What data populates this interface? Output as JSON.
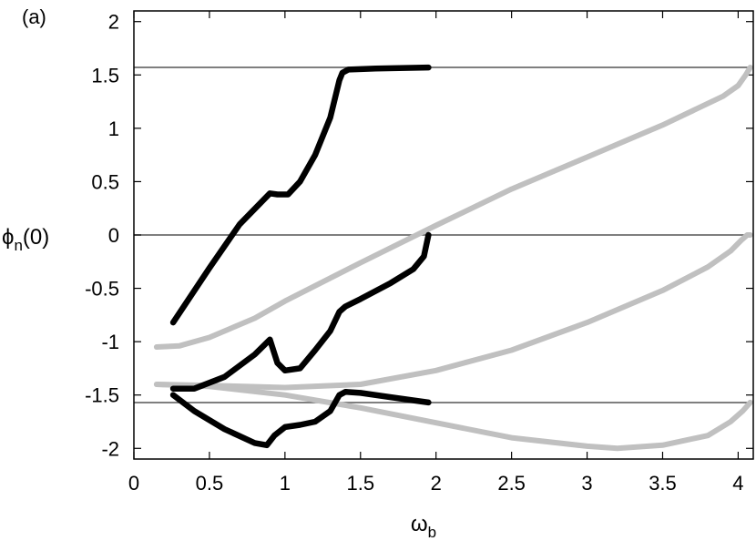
{
  "chart_data": {
    "type": "line",
    "panel_label": "(a)",
    "xlabel": {
      "main": "ω",
      "sub": "b"
    },
    "ylabel": {
      "main": "ϕ",
      "sub": "n",
      "suffix": "(0)"
    },
    "xlim": [
      0,
      4.1
    ],
    "ylim": [
      -2.1,
      2.1
    ],
    "x_ticks": [
      {
        "v": 0,
        "t": "0"
      },
      {
        "v": 0.5,
        "t": "0.5"
      },
      {
        "v": 1,
        "t": "1"
      },
      {
        "v": 1.5,
        "t": "1.5"
      },
      {
        "v": 2,
        "t": "2"
      },
      {
        "v": 2.5,
        "t": "2.5"
      },
      {
        "v": 3,
        "t": "3"
      },
      {
        "v": 3.5,
        "t": "3.5"
      },
      {
        "v": 4,
        "t": "4"
      }
    ],
    "y_ticks": [
      {
        "v": 2,
        "t": "2"
      },
      {
        "v": 1.5,
        "t": "1.5"
      },
      {
        "v": 1,
        "t": "1"
      },
      {
        "v": 0.5,
        "t": "0.5"
      },
      {
        "v": 0,
        "t": "0"
      },
      {
        "v": -0.5,
        "t": "-0.5"
      },
      {
        "v": -1,
        "t": "-1"
      },
      {
        "v": -1.5,
        "t": "-1.5"
      },
      {
        "v": -2,
        "t": "-2"
      }
    ],
    "reference_lines_y": [
      1.5708,
      0,
      -1.5708
    ],
    "colors": {
      "black": "#000000",
      "gray": "#c0c0c0",
      "reference": "#555555"
    },
    "series": [
      {
        "color": "black",
        "x": [
          0.26,
          0.5,
          0.7,
          0.9,
          0.95,
          1.02,
          1.1,
          1.2,
          1.3,
          1.36,
          1.38,
          1.42,
          1.6,
          1.95
        ],
        "y": [
          -0.82,
          -0.31,
          0.1,
          0.39,
          0.38,
          0.38,
          0.5,
          0.75,
          1.1,
          1.45,
          1.52,
          1.55,
          1.56,
          1.57
        ]
      },
      {
        "color": "black",
        "x": [
          0.26,
          0.4,
          0.6,
          0.8,
          0.9,
          0.95,
          1.0,
          1.1,
          1.2,
          1.3,
          1.36,
          1.4,
          1.5,
          1.7,
          1.85,
          1.92,
          1.95
        ],
        "y": [
          -1.44,
          -1.44,
          -1.33,
          -1.12,
          -0.98,
          -1.2,
          -1.27,
          -1.25,
          -1.08,
          -0.9,
          -0.72,
          -0.67,
          -0.6,
          -0.45,
          -0.32,
          -0.2,
          0.0
        ]
      },
      {
        "color": "black",
        "x": [
          0.26,
          0.4,
          0.6,
          0.8,
          0.88,
          0.93,
          1.0,
          1.1,
          1.2,
          1.3,
          1.36,
          1.4,
          1.5,
          1.7,
          1.95
        ],
        "y": [
          -1.5,
          -1.65,
          -1.82,
          -1.95,
          -1.97,
          -1.88,
          -1.8,
          -1.78,
          -1.75,
          -1.65,
          -1.5,
          -1.47,
          -1.48,
          -1.52,
          -1.57
        ]
      },
      {
        "color": "gray",
        "x": [
          0.15,
          0.3,
          0.5,
          0.8,
          1.0,
          1.5,
          2.0,
          2.5,
          3.0,
          3.5,
          3.9,
          4.0,
          4.05,
          4.08
        ],
        "y": [
          -1.05,
          -1.04,
          -0.96,
          -0.78,
          -0.62,
          -0.26,
          0.09,
          0.43,
          0.73,
          1.03,
          1.3,
          1.4,
          1.5,
          1.57
        ]
      },
      {
        "color": "gray",
        "x": [
          0.15,
          0.5,
          1.0,
          1.5,
          2.0,
          2.5,
          3.0,
          3.5,
          3.8,
          3.95,
          4.02,
          4.06,
          4.08
        ],
        "y": [
          -1.4,
          -1.41,
          -1.43,
          -1.4,
          -1.27,
          -1.08,
          -0.82,
          -0.52,
          -0.3,
          -0.15,
          -0.05,
          0.0,
          0.0
        ]
      },
      {
        "color": "gray",
        "x": [
          0.15,
          0.5,
          1.0,
          1.5,
          2.0,
          2.5,
          3.0,
          3.2,
          3.5,
          3.8,
          3.95,
          4.03,
          4.08
        ],
        "y": [
          -1.4,
          -1.42,
          -1.5,
          -1.62,
          -1.76,
          -1.9,
          -1.98,
          -2.0,
          -1.97,
          -1.88,
          -1.75,
          -1.65,
          -1.57
        ]
      }
    ]
  }
}
